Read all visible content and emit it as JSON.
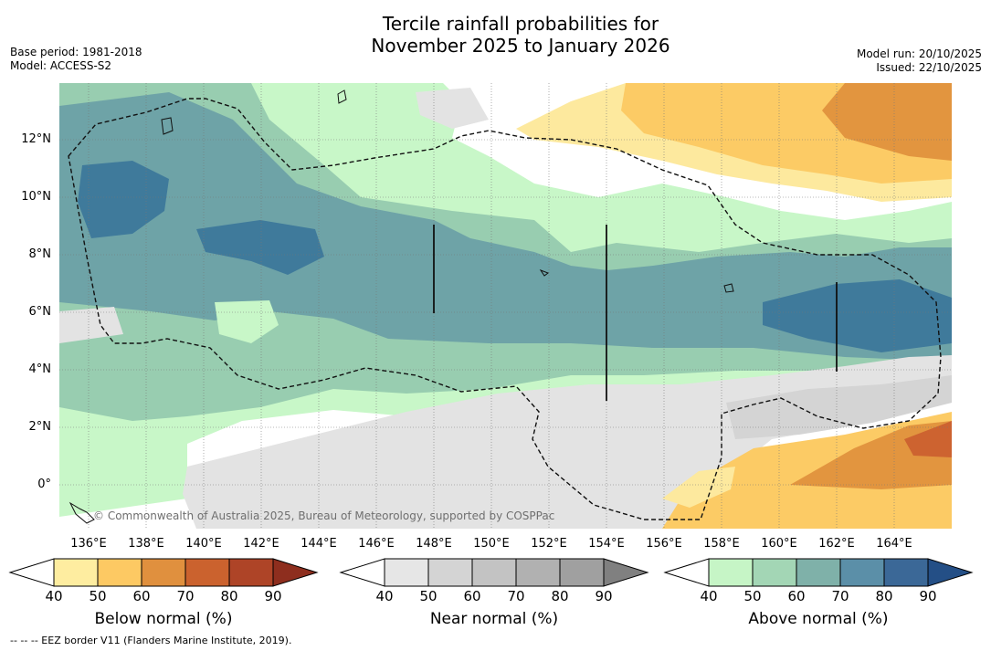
{
  "header": {
    "title_line1": "Tercile rainfall probabilities for",
    "title_line2": "November 2025 to January 2026",
    "base_period": "Base period: 1981-2018",
    "model": "Model: ACCESS-S2",
    "model_run": "Model run: 20/10/2025",
    "issued": "Issued: 22/10/2025"
  },
  "map": {
    "lat_labels": [
      "12°N",
      "10°N",
      "8°N",
      "6°N",
      "4°N",
      "2°N",
      "0°"
    ],
    "lon_labels": [
      "136°E",
      "138°E",
      "140°E",
      "142°E",
      "144°E",
      "146°E",
      "148°E",
      "150°E",
      "152°E",
      "154°E",
      "156°E",
      "158°E",
      "160°E",
      "162°E",
      "164°E"
    ],
    "copyright": "© Commonwealth of Australia 2025, Bureau of Meteorology, supported by COSPPac",
    "colors": {
      "above_50": "#c8f7c8",
      "above_60": "#98cdb0",
      "above_70": "#6ea3a7",
      "above_80": "#3f7a9b",
      "near_50": "#e3e3e3",
      "near_60": "#d4d4d4",
      "below_40": "#fde99e",
      "below_50": "#fccb65",
      "below_60": "#e2953f",
      "below_70": "#cd6330",
      "neutral": "#ffffff"
    }
  },
  "colorbars": [
    {
      "title": "Below normal (%)",
      "ticks": [
        "40",
        "50",
        "60",
        "70",
        "80",
        "90"
      ],
      "colors": [
        "#ffffff",
        "#feeda0",
        "#fdc963",
        "#e0903e",
        "#cb622e",
        "#ae4427",
        "#8e2e1e"
      ]
    },
    {
      "title": "Near normal (%)",
      "ticks": [
        "40",
        "50",
        "60",
        "70",
        "80",
        "90"
      ],
      "colors": [
        "#ffffff",
        "#e6e6e6",
        "#d4d4d4",
        "#c3c3c3",
        "#b1b1b1",
        "#a0a0a0",
        "#808080"
      ]
    },
    {
      "title": "Above normal (%)",
      "ticks": [
        "40",
        "50",
        "60",
        "70",
        "80",
        "90"
      ],
      "colors": [
        "#ffffff",
        "#c6f5c6",
        "#a3d6b5",
        "#7fb1a9",
        "#5b8fa8",
        "#3b6897",
        "#244f86"
      ]
    }
  ],
  "legend_note": "--  --  -- EEZ border V11 (Flanders Marine Institute, 2019)."
}
